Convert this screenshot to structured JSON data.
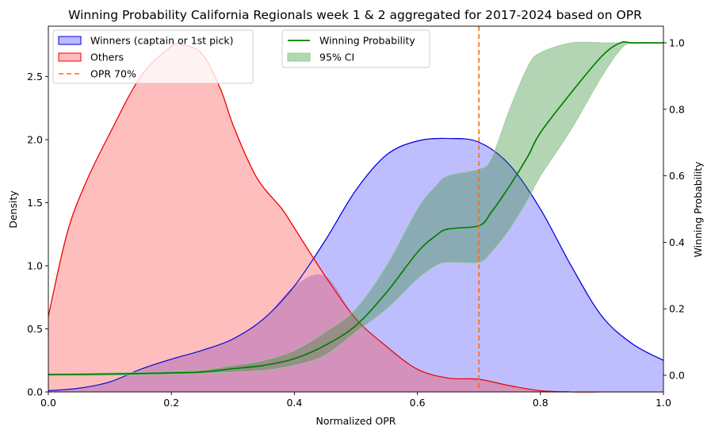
{
  "chart_data": {
    "type": "area",
    "title": "Winning Probability California Regionals week 1 & 2 aggregated for 2017-2024 based on OPR",
    "xlabel": "Normalized OPR",
    "ylabel": "Density",
    "y2label": "Winning Probability",
    "xlim": [
      0,
      1.0
    ],
    "ylim": [
      0,
      2.9
    ],
    "y2lim": [
      -0.05,
      1.05
    ],
    "x_ticks": [
      "0.0",
      "0.2",
      "0.4",
      "0.6",
      "0.8",
      "1.0"
    ],
    "y_ticks": [
      "0.0",
      "0.5",
      "1.0",
      "1.5",
      "2.0",
      "2.5"
    ],
    "y2_ticks": [
      "0.0",
      "0.2",
      "0.4",
      "0.6",
      "0.8",
      "1.0"
    ],
    "grid": false,
    "legend_left": [
      {
        "label": "Winners (captain or 1st pick)",
        "kind": "patch",
        "fill": "#bbbbff",
        "edge": "#0000dd"
      },
      {
        "label": "Others",
        "kind": "patch",
        "fill": "#ffbbbb",
        "edge": "#ee0000"
      },
      {
        "label": "OPR 70%",
        "kind": "dash",
        "edge": "#ff6a13"
      }
    ],
    "legend_right": [
      {
        "label": "Winning Probability",
        "kind": "line",
        "edge": "#008000"
      },
      {
        "label": "95% CI",
        "kind": "patch",
        "fill": "#b2d8b2",
        "edge": "#98c898"
      }
    ],
    "series": [
      {
        "name": "Winners (captain or 1st pick)",
        "axis": "left",
        "fill": "#bbbbff",
        "edge": "#0000dd",
        "x": [
          0.0,
          0.05,
          0.1,
          0.15,
          0.2,
          0.25,
          0.3,
          0.35,
          0.4,
          0.45,
          0.5,
          0.55,
          0.6,
          0.65,
          0.7,
          0.75,
          0.8,
          0.85,
          0.9,
          0.95,
          1.0
        ],
        "y": [
          0.01,
          0.03,
          0.08,
          0.18,
          0.26,
          0.33,
          0.42,
          0.58,
          0.84,
          1.2,
          1.6,
          1.88,
          1.99,
          2.01,
          1.98,
          1.8,
          1.45,
          1.0,
          0.6,
          0.38,
          0.25
        ]
      },
      {
        "name": "Others",
        "axis": "left",
        "fill": "#ffbbbb",
        "edge": "#ee0000",
        "x": [
          0.0,
          0.03,
          0.06,
          0.1,
          0.15,
          0.2,
          0.22,
          0.25,
          0.28,
          0.3,
          0.33,
          0.35,
          0.38,
          0.4,
          0.45,
          0.5,
          0.55,
          0.6,
          0.65,
          0.7,
          0.75,
          0.8,
          0.85,
          0.9,
          0.95,
          1.0
        ],
        "y": [
          0.6,
          1.25,
          1.65,
          2.05,
          2.5,
          2.74,
          2.75,
          2.68,
          2.4,
          2.12,
          1.78,
          1.62,
          1.45,
          1.3,
          0.92,
          0.58,
          0.36,
          0.18,
          0.11,
          0.1,
          0.05,
          0.01,
          0.0,
          0.0,
          0.0,
          0.0
        ]
      },
      {
        "name": "Winning Probability",
        "axis": "right",
        "edge": "#008000",
        "x": [
          0.0,
          0.1,
          0.2,
          0.25,
          0.3,
          0.35,
          0.4,
          0.45,
          0.5,
          0.55,
          0.6,
          0.63,
          0.65,
          0.7,
          0.72,
          0.75,
          0.78,
          0.8,
          0.85,
          0.9,
          0.93,
          0.95,
          1.0
        ],
        "y": [
          0.002,
          0.004,
          0.007,
          0.01,
          0.02,
          0.03,
          0.05,
          0.09,
          0.15,
          0.25,
          0.37,
          0.42,
          0.44,
          0.45,
          0.49,
          0.57,
          0.66,
          0.73,
          0.85,
          0.96,
          1.0,
          1.0,
          1.0
        ]
      },
      {
        "name": "95% CI",
        "axis": "right",
        "fill": "#b2d8b2",
        "edge": "#98c898",
        "x": [
          0.0,
          0.1,
          0.2,
          0.25,
          0.3,
          0.35,
          0.4,
          0.45,
          0.5,
          0.55,
          0.6,
          0.63,
          0.65,
          0.7,
          0.72,
          0.75,
          0.78,
          0.8,
          0.85,
          0.9,
          0.93,
          0.95,
          1.0
        ],
        "lower": [
          0.0,
          0.0,
          0.004,
          0.006,
          0.01,
          0.015,
          0.03,
          0.06,
          0.13,
          0.2,
          0.29,
          0.33,
          0.34,
          0.34,
          0.37,
          0.44,
          0.53,
          0.6,
          0.74,
          0.9,
          0.98,
          1.0,
          1.0
        ],
        "upper": [
          0.005,
          0.007,
          0.012,
          0.016,
          0.03,
          0.045,
          0.075,
          0.13,
          0.2,
          0.33,
          0.5,
          0.57,
          0.6,
          0.62,
          0.65,
          0.8,
          0.93,
          0.97,
          1.0,
          1.0,
          1.0,
          1.0,
          1.0
        ]
      }
    ],
    "reference_lines": [
      {
        "name": "OPR 70%",
        "x": 0.7,
        "edge": "#ff6a13",
        "style": "dashed"
      }
    ]
  }
}
